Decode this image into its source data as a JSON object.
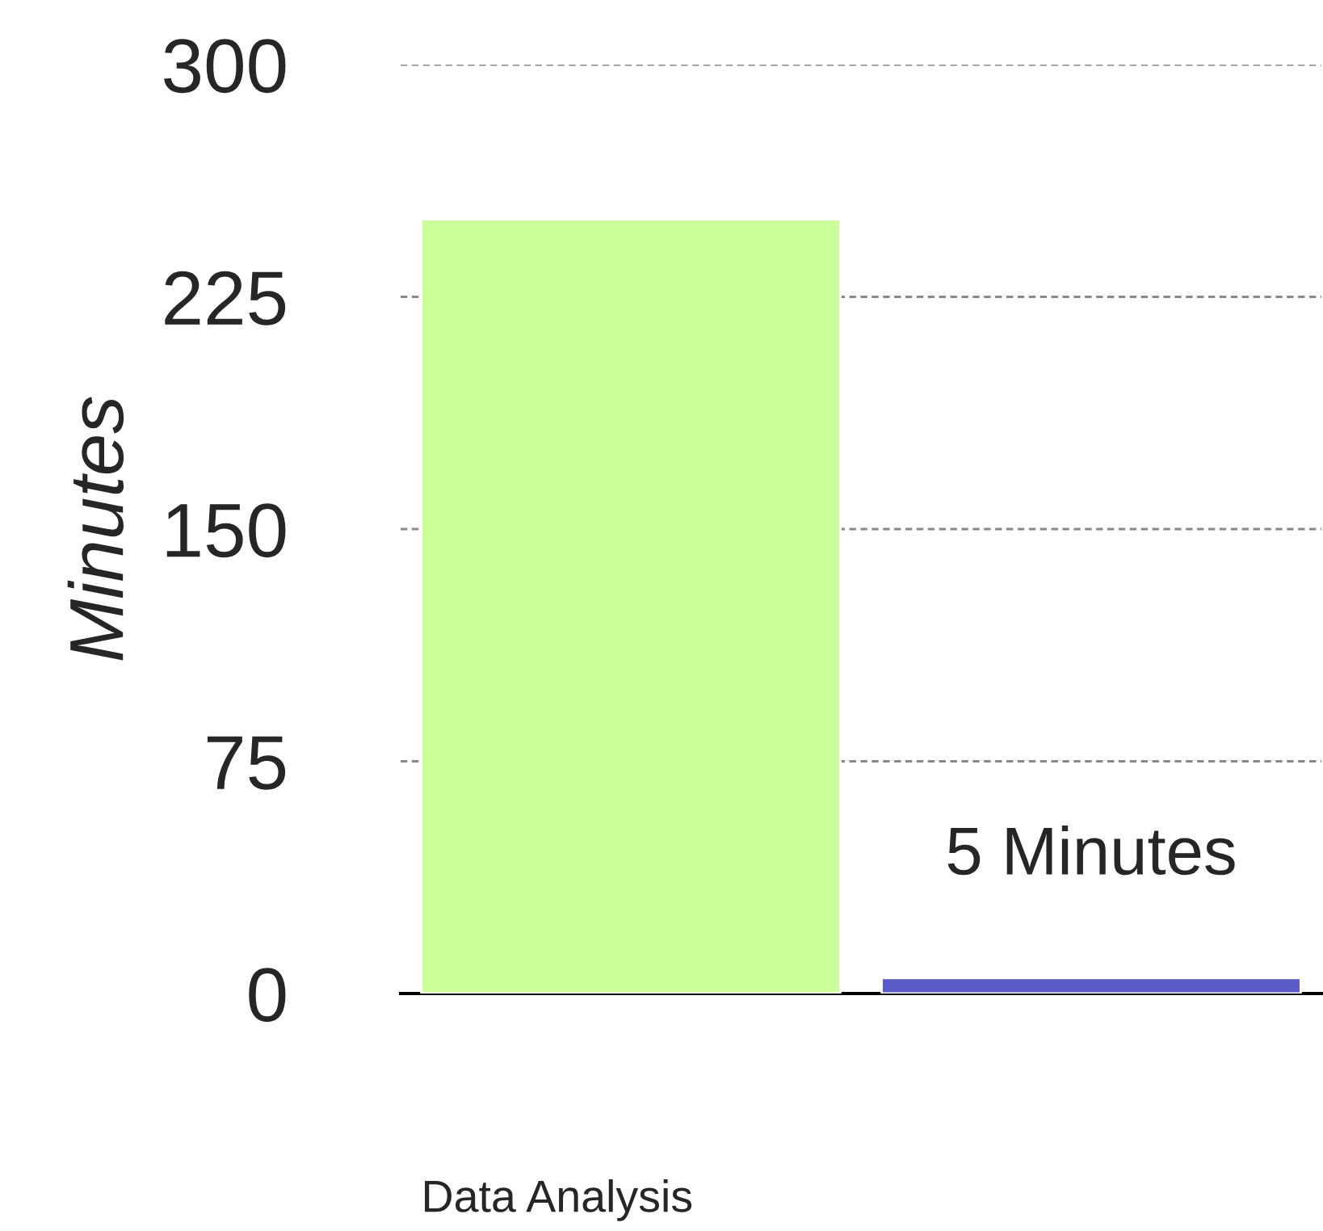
{
  "chart_data": {
    "type": "bar",
    "xlabel": "Data Analysis",
    "ylabel": "Minutes",
    "categories": [
      null,
      null
    ],
    "values": [
      250,
      5
    ],
    "colors": [
      "#ccff99",
      "#5a5ac8"
    ],
    "value_labels": [
      null,
      "5 Minutes"
    ],
    "ylim": [
      0,
      300
    ],
    "yticks": [
      0,
      75,
      150,
      225,
      300
    ],
    "grid": "y"
  }
}
